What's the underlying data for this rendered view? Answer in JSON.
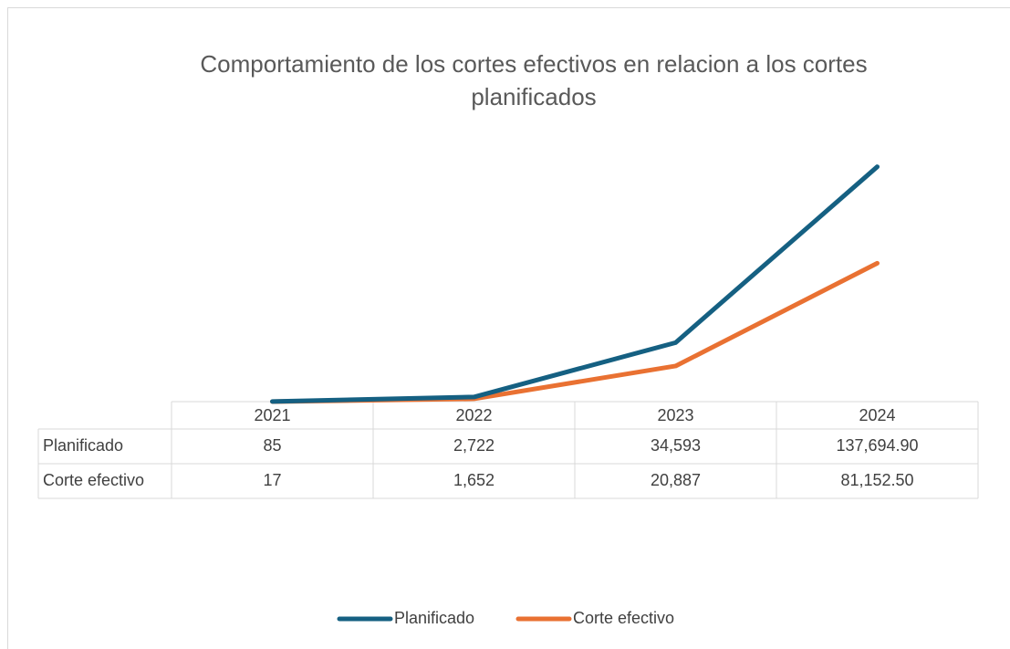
{
  "chart_data": {
    "type": "line",
    "title": "Comportamiento de los cortes efectivos en relacion a los cortes planificados",
    "categories": [
      "2021",
      "2022",
      "2023",
      "2024"
    ],
    "series": [
      {
        "name": "Planificado",
        "color": "#156082",
        "values": [
          85,
          2722,
          34593,
          137694.9
        ],
        "value_labels": [
          "85",
          "2,722",
          "34,593",
          "137,694.90"
        ]
      },
      {
        "name": "Corte efectivo",
        "color": "#e97132",
        "values": [
          17,
          1652,
          20887,
          81152.5
        ],
        "value_labels": [
          "17",
          "1,652",
          "20,887",
          "81,152.50"
        ]
      }
    ],
    "ylim": [
      0,
      160000
    ],
    "legend": "bottom"
  }
}
